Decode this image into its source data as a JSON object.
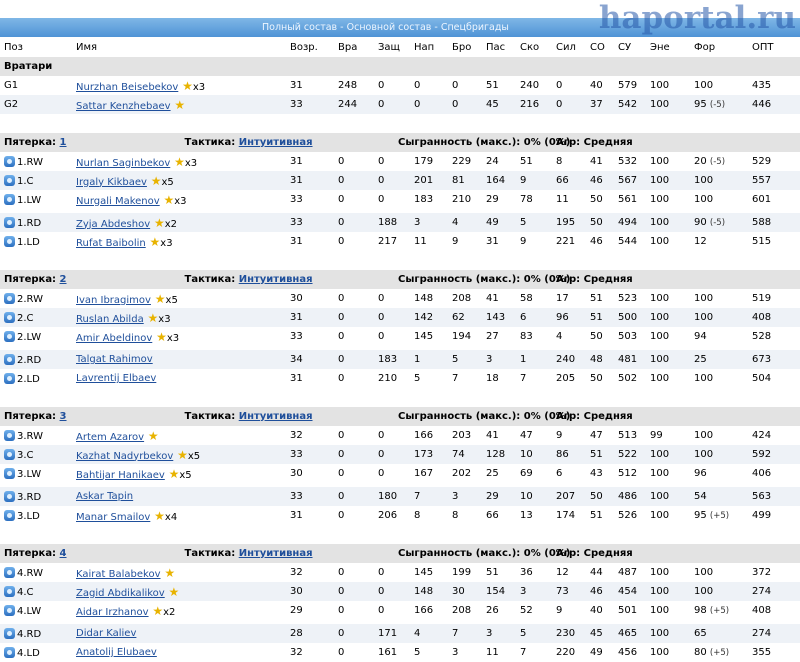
{
  "header": {
    "nav": "Полный состав - Основной состав - Спецбригады",
    "watermark": "haportal.ru"
  },
  "columns": [
    "Поз",
    "Имя",
    "Возр.",
    "Вра",
    "Защ",
    "Нап",
    "Бро",
    "Пас",
    "Ско",
    "Сил",
    "СО",
    "СУ",
    "Эне",
    "Фор",
    "ОПТ"
  ],
  "goalies": {
    "label": "Вратари",
    "rows": [
      {
        "pos": "G1",
        "name": "Nurzhan Beisebekov",
        "star": true,
        "mult": "x3",
        "vals": [
          "31",
          "248",
          "0",
          "0",
          "0",
          "51",
          "240",
          "0",
          "40",
          "579",
          "100",
          "100",
          "435"
        ],
        "form_delta": ""
      },
      {
        "pos": "G2",
        "name": "Sattar Kenzhebaev",
        "star": true,
        "mult": "",
        "vals": [
          "33",
          "244",
          "0",
          "0",
          "0",
          "45",
          "216",
          "0",
          "37",
          "542",
          "100",
          "95",
          "446"
        ],
        "form_delta": "(-5)"
      }
    ]
  },
  "units": [
    {
      "title": "Пятерка:",
      "num": "1",
      "tactic_label": "Тактика:",
      "tactic": "Интуитивная",
      "played": "Сыгранность (макс.): 0% (0%)",
      "aggr": "Агр: Средняя",
      "rows": [
        {
          "pos": "1.RW",
          "name": "Nurlan Saginbekov",
          "star": true,
          "mult": "x3",
          "vals": [
            "31",
            "0",
            "0",
            "179",
            "229",
            "24",
            "51",
            "8",
            "41",
            "532",
            "100",
            "20",
            "529"
          ],
          "form_delta": "(-5)"
        },
        {
          "pos": "1.C",
          "name": "Irgaly Kikbaev",
          "star": true,
          "mult": "x5",
          "vals": [
            "31",
            "0",
            "0",
            "201",
            "81",
            "164",
            "9",
            "66",
            "46",
            "567",
            "100",
            "100",
            "557"
          ],
          "form_delta": ""
        },
        {
          "pos": "1.LW",
          "name": "Nurgali Makenov",
          "star": true,
          "mult": "x3",
          "vals": [
            "33",
            "0",
            "0",
            "183",
            "210",
            "29",
            "78",
            "11",
            "50",
            "561",
            "100",
            "100",
            "601"
          ],
          "form_delta": ""
        },
        {
          "pos": "1.RD",
          "name": "Zyja Abdeshov",
          "star": true,
          "mult": "x2",
          "vals": [
            "33",
            "0",
            "188",
            "3",
            "4",
            "49",
            "5",
            "195",
            "50",
            "494",
            "100",
            "90",
            "588"
          ],
          "form_delta": "(-5)",
          "gap_before": true
        },
        {
          "pos": "1.LD",
          "name": "Rufat Baibolin",
          "star": true,
          "mult": "x3",
          "vals": [
            "31",
            "0",
            "217",
            "11",
            "9",
            "31",
            "9",
            "221",
            "46",
            "544",
            "100",
            "12",
            "515"
          ],
          "form_delta": ""
        }
      ]
    },
    {
      "title": "Пятерка:",
      "num": "2",
      "tactic_label": "Тактика:",
      "tactic": "Интуитивная",
      "played": "Сыгранность (макс.): 0% (0%)",
      "aggr": "Агр: Средняя",
      "rows": [
        {
          "pos": "2.RW",
          "name": "Ivan Ibragimov",
          "star": true,
          "mult": "x5",
          "vals": [
            "30",
            "0",
            "0",
            "148",
            "208",
            "41",
            "58",
            "17",
            "51",
            "523",
            "100",
            "100",
            "519"
          ],
          "form_delta": ""
        },
        {
          "pos": "2.C",
          "name": "Ruslan Abilda",
          "star": true,
          "mult": "x3",
          "vals": [
            "31",
            "0",
            "0",
            "142",
            "62",
            "143",
            "6",
            "96",
            "51",
            "500",
            "100",
            "100",
            "408"
          ],
          "form_delta": ""
        },
        {
          "pos": "2.LW",
          "name": "Amir Abeldinov",
          "star": true,
          "mult": "x3",
          "vals": [
            "33",
            "0",
            "0",
            "145",
            "194",
            "27",
            "83",
            "4",
            "50",
            "503",
            "100",
            "94",
            "528"
          ],
          "form_delta": ""
        },
        {
          "pos": "2.RD",
          "name": "Talgat Rahimov",
          "star": false,
          "mult": "",
          "vals": [
            "34",
            "0",
            "183",
            "1",
            "5",
            "3",
            "1",
            "240",
            "48",
            "481",
            "100",
            "25",
            "673"
          ],
          "form_delta": "",
          "gap_before": true
        },
        {
          "pos": "2.LD",
          "name": "Lavrentij Elbaev",
          "star": false,
          "mult": "",
          "vals": [
            "31",
            "0",
            "210",
            "5",
            "7",
            "18",
            "7",
            "205",
            "50",
            "502",
            "100",
            "100",
            "504"
          ],
          "form_delta": ""
        }
      ]
    },
    {
      "title": "Пятерка:",
      "num": "3",
      "tactic_label": "Тактика:",
      "tactic": "Интуитивная",
      "played": "Сыгранность (макс.): 0% (0%)",
      "aggr": "Агр: Средняя",
      "rows": [
        {
          "pos": "3.RW",
          "name": "Artem Azarov",
          "star": true,
          "mult": "",
          "vals": [
            "32",
            "0",
            "0",
            "166",
            "203",
            "41",
            "47",
            "9",
            "47",
            "513",
            "99",
            "100",
            "424"
          ],
          "form_delta": ""
        },
        {
          "pos": "3.C",
          "name": "Kazhat Nadyrbekov",
          "star": true,
          "mult": "x5",
          "vals": [
            "33",
            "0",
            "0",
            "173",
            "74",
            "128",
            "10",
            "86",
            "51",
            "522",
            "100",
            "100",
            "592"
          ],
          "form_delta": ""
        },
        {
          "pos": "3.LW",
          "name": "Bahtijar Hanikaev",
          "star": true,
          "mult": "x5",
          "vals": [
            "30",
            "0",
            "0",
            "167",
            "202",
            "25",
            "69",
            "6",
            "43",
            "512",
            "100",
            "96",
            "406"
          ],
          "form_delta": ""
        },
        {
          "pos": "3.RD",
          "name": "Askar Tapin",
          "star": false,
          "mult": "",
          "vals": [
            "33",
            "0",
            "180",
            "7",
            "3",
            "29",
            "10",
            "207",
            "50",
            "486",
            "100",
            "54",
            "563"
          ],
          "form_delta": "",
          "gap_before": true
        },
        {
          "pos": "3.LD",
          "name": "Manar Smailov",
          "star": true,
          "mult": "x4",
          "vals": [
            "31",
            "0",
            "206",
            "8",
            "8",
            "66",
            "13",
            "174",
            "51",
            "526",
            "100",
            "95",
            "499"
          ],
          "form_delta": "(+5)"
        }
      ]
    },
    {
      "title": "Пятерка:",
      "num": "4",
      "tactic_label": "Тактика:",
      "tactic": "Интуитивная",
      "played": "Сыгранность (макс.): 0% (0%)",
      "aggr": "Агр: Средняя",
      "rows": [
        {
          "pos": "4.RW",
          "name": "Kairat Balabekov",
          "star": true,
          "mult": "",
          "vals": [
            "32",
            "0",
            "0",
            "145",
            "199",
            "51",
            "36",
            "12",
            "44",
            "487",
            "100",
            "100",
            "372"
          ],
          "form_delta": ""
        },
        {
          "pos": "4.C",
          "name": "Zagid Abdikalikov",
          "star": true,
          "mult": "",
          "vals": [
            "30",
            "0",
            "0",
            "148",
            "30",
            "154",
            "3",
            "73",
            "46",
            "454",
            "100",
            "100",
            "274"
          ],
          "form_delta": ""
        },
        {
          "pos": "4.LW",
          "name": "Aidar Irzhanov",
          "star": true,
          "mult": "x2",
          "vals": [
            "29",
            "0",
            "0",
            "166",
            "208",
            "26",
            "52",
            "9",
            "40",
            "501",
            "100",
            "98",
            "408"
          ],
          "form_delta": "(+5)"
        },
        {
          "pos": "4.RD",
          "name": "Didar Kaliev",
          "star": false,
          "mult": "",
          "vals": [
            "28",
            "0",
            "171",
            "4",
            "7",
            "3",
            "5",
            "230",
            "45",
            "465",
            "100",
            "65",
            "274"
          ],
          "form_delta": "",
          "gap_before": true
        },
        {
          "pos": "4.LD",
          "name": "Anatolij Elubaev",
          "star": false,
          "mult": "",
          "vals": [
            "32",
            "0",
            "161",
            "5",
            "3",
            "11",
            "7",
            "220",
            "49",
            "456",
            "100",
            "80",
            "355"
          ],
          "form_delta": "(+5)"
        }
      ]
    }
  ]
}
